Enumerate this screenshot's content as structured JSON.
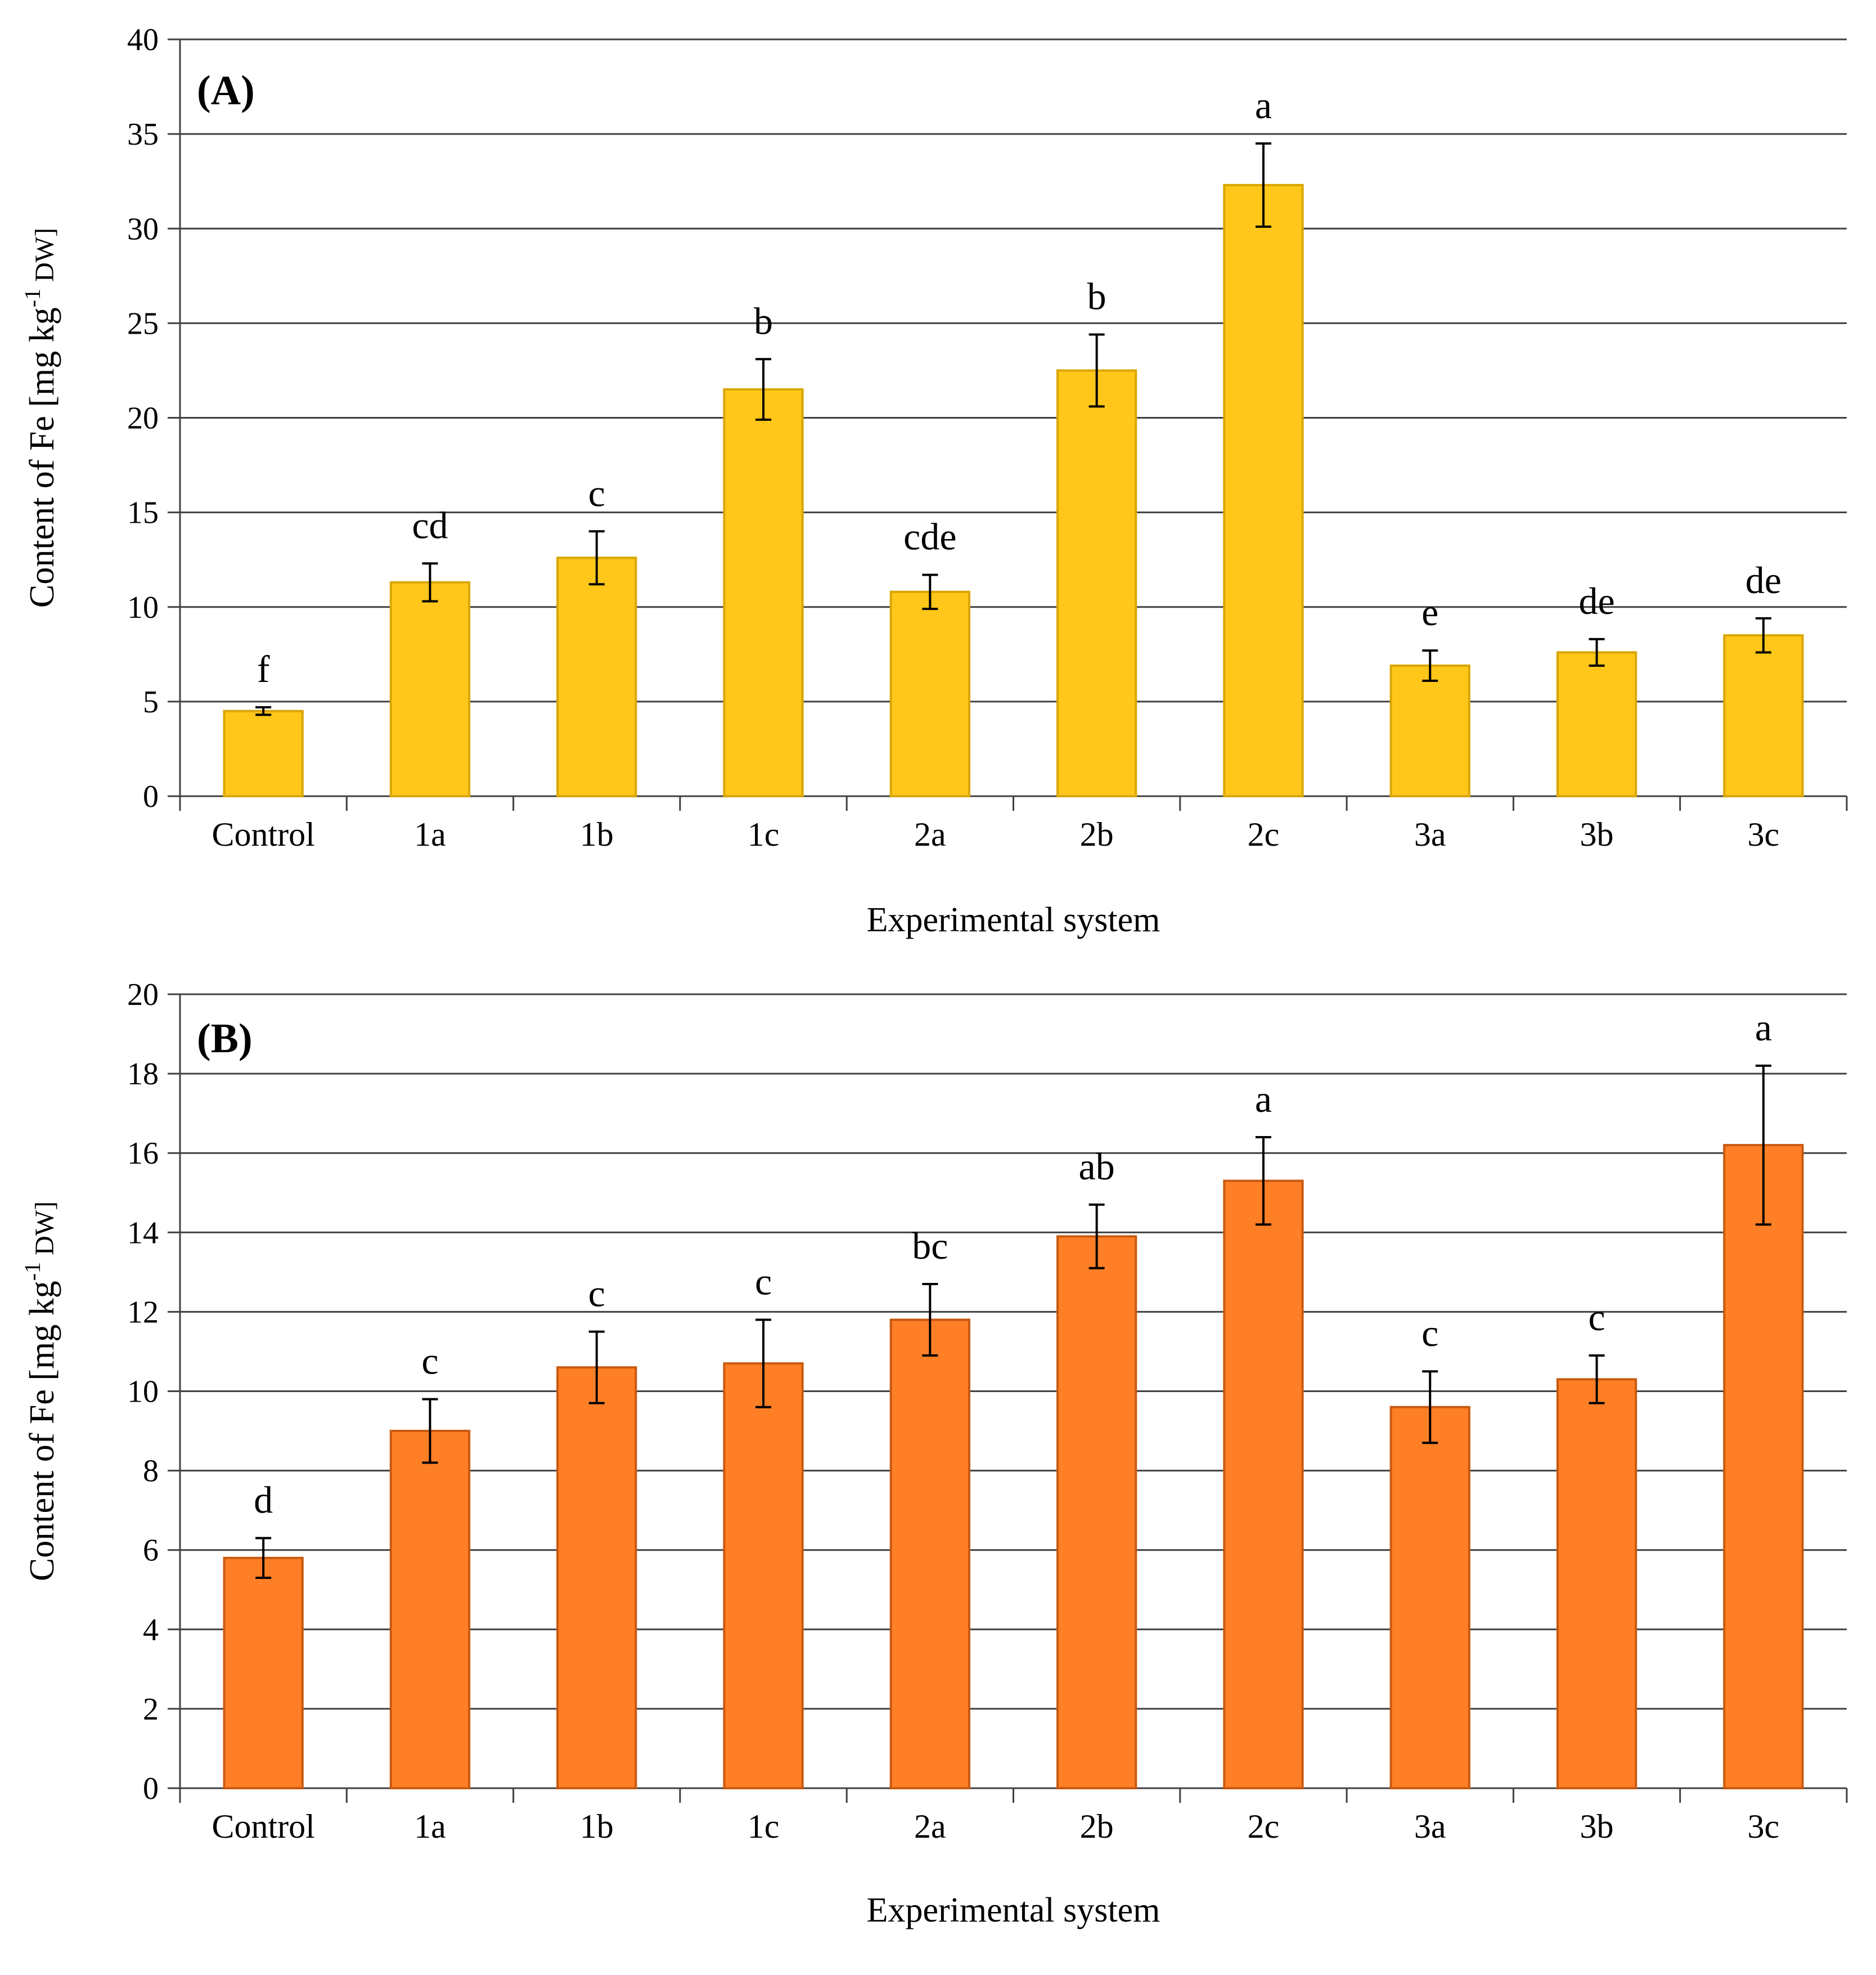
{
  "chart_data": [
    {
      "type": "bar",
      "panel_label": "(A)",
      "categories": [
        "Control",
        "1a",
        "1b",
        "1c",
        "2a",
        "2b",
        "2c",
        "3a",
        "3b",
        "3c"
      ],
      "values": [
        4.5,
        11.3,
        12.6,
        21.5,
        10.8,
        22.5,
        32.3,
        6.9,
        7.6,
        8.5
      ],
      "errors": [
        0.2,
        1.0,
        1.4,
        1.6,
        0.9,
        1.9,
        2.2,
        0.8,
        0.7,
        0.9
      ],
      "significance": [
        "f",
        "cd",
        "c",
        "b",
        "cde",
        "b",
        "a",
        "e",
        "de",
        "de"
      ],
      "ylim": [
        0,
        40
      ],
      "yticks": [
        0,
        5,
        10,
        15,
        20,
        25,
        30,
        35,
        40
      ],
      "ylabel_main": "Content of Fe [mg kg",
      "ylabel_sup": "-1",
      "ylabel_sub": " DW]",
      "xlabel": "Experimental system",
      "bar_color": "#FFC71A",
      "bar_edge": "#D9A600",
      "grid": true
    },
    {
      "type": "bar",
      "panel_label": "(B)",
      "categories": [
        "Control",
        "1a",
        "1b",
        "1c",
        "2a",
        "2b",
        "2c",
        "3a",
        "3b",
        "3c"
      ],
      "values": [
        5.8,
        9.0,
        10.6,
        10.7,
        11.8,
        13.9,
        15.3,
        9.6,
        10.3,
        16.2
      ],
      "errors": [
        0.5,
        0.8,
        0.9,
        1.1,
        0.9,
        0.8,
        1.1,
        0.9,
        0.6,
        2.0
      ],
      "significance": [
        "d",
        "c",
        "c",
        "c",
        "bc",
        "ab",
        "a",
        "c",
        "c",
        "a"
      ],
      "ylim": [
        0,
        20
      ],
      "yticks": [
        0,
        2,
        4,
        6,
        8,
        10,
        12,
        14,
        16,
        18,
        20
      ],
      "ylabel_main": "Content of Fe [mg kg",
      "ylabel_sup": "-1",
      "ylabel_sub": " DW]",
      "xlabel": "Experimental system",
      "bar_color": "#FF7F27",
      "bar_edge": "#C85A10",
      "grid": true
    }
  ]
}
